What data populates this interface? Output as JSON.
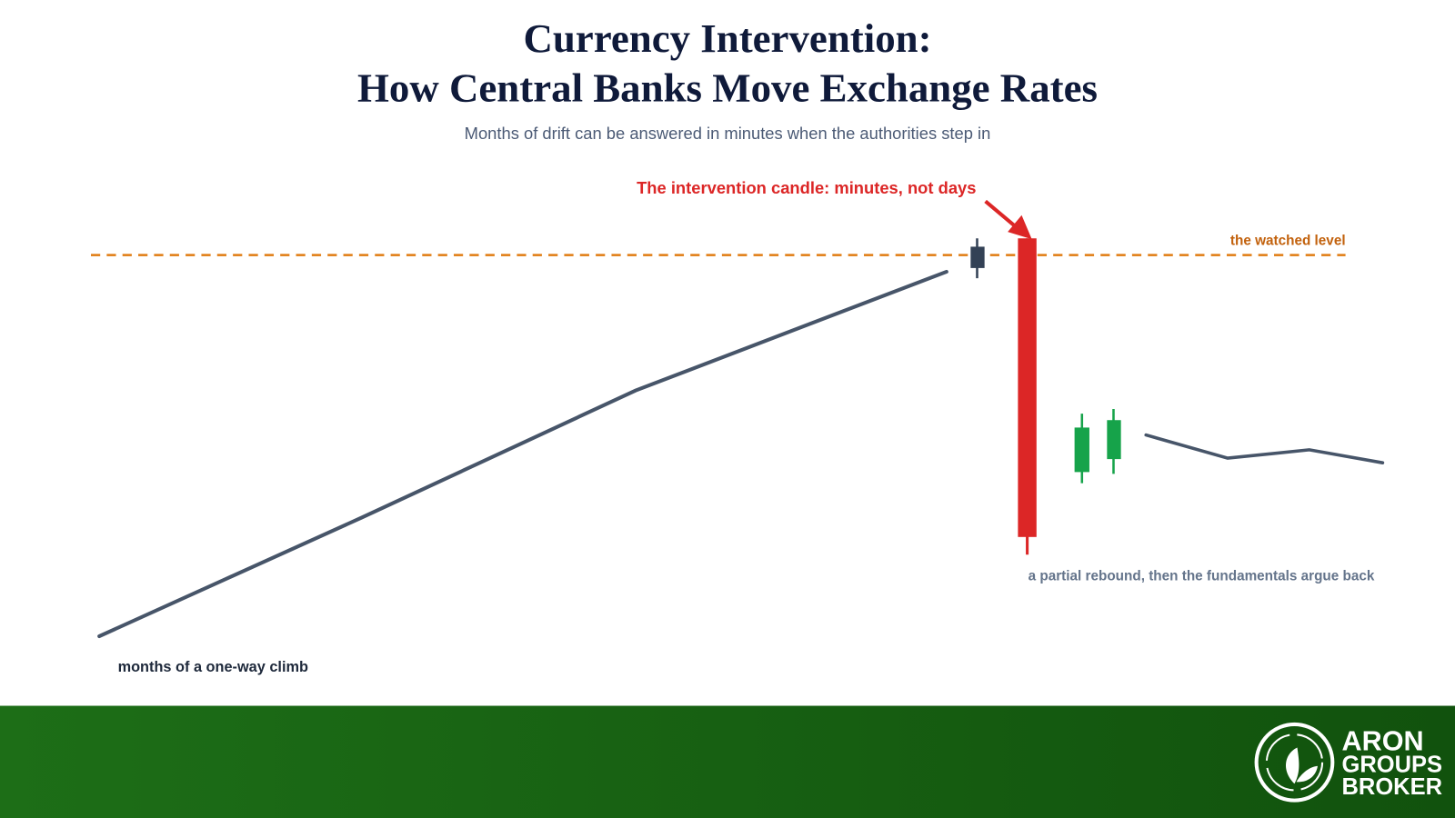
{
  "header": {
    "title_line1": "Currency Intervention:",
    "title_line2": "How Central Banks Move Exchange Rates",
    "subtitle": "Months of drift can be answered in minutes when the authorities step in"
  },
  "annotations": {
    "intervention": "The intervention candle: minutes, not days",
    "watched_level": "the watched level",
    "rebound": "a partial rebound, then the fundamentals argue back",
    "climb": "months of a one-way climb"
  },
  "logo": {
    "line1": "ARON",
    "line2": "GROUPS",
    "line3": "BROKER"
  }
}
